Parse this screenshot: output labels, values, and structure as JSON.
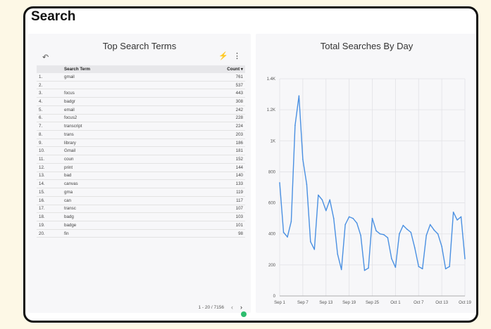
{
  "page": {
    "title": "Search"
  },
  "terms_panel": {
    "title": "Top Search Terms",
    "columns": {
      "term": "Search Term",
      "count": "Count"
    },
    "sort_indicator": "▾",
    "rows": [
      {
        "n": "1.",
        "term": "gmail",
        "count": "761"
      },
      {
        "n": "2.",
        "term": "",
        "count": "537"
      },
      {
        "n": "3.",
        "term": "focus",
        "count": "443"
      },
      {
        "n": "4.",
        "term": "badgr",
        "count": "308"
      },
      {
        "n": "5.",
        "term": "email",
        "count": "242"
      },
      {
        "n": "6.",
        "term": "focus2",
        "count": "228"
      },
      {
        "n": "7.",
        "term": "transcript",
        "count": "224"
      },
      {
        "n": "8.",
        "term": "trans",
        "count": "203"
      },
      {
        "n": "9.",
        "term": "library",
        "count": "186"
      },
      {
        "n": "10.",
        "term": "Gmail",
        "count": "181"
      },
      {
        "n": "11.",
        "term": "coun",
        "count": "152"
      },
      {
        "n": "12.",
        "term": "print",
        "count": "144"
      },
      {
        "n": "13.",
        "term": "bad",
        "count": "140"
      },
      {
        "n": "14.",
        "term": "canvas",
        "count": "133"
      },
      {
        "n": "15.",
        "term": "gma",
        "count": "119"
      },
      {
        "n": "16.",
        "term": "can",
        "count": "117"
      },
      {
        "n": "17.",
        "term": "transc",
        "count": "107"
      },
      {
        "n": "18.",
        "term": "badg",
        "count": "103"
      },
      {
        "n": "19.",
        "term": "badge",
        "count": "101"
      },
      {
        "n": "20.",
        "term": "fin",
        "count": "98"
      }
    ],
    "pagination": {
      "range": "1 - 20 / 7156",
      "prev": "‹",
      "next": "›"
    },
    "icons": {
      "reset": "undo-icon",
      "bolt": "bolt-icon",
      "menu": "kebab-icon"
    }
  },
  "chart_data": {
    "type": "line",
    "title": "Total Searches By Day",
    "x_tick_labels": [
      "Sep 1",
      "Sep 7",
      "Sep 13",
      "Sep 19",
      "Sep 25",
      "Oct 1",
      "Oct 7",
      "Oct 13",
      "Oct 19"
    ],
    "y_tick_labels": [
      "0",
      "200",
      "400",
      "600",
      "800",
      "1K",
      "1.2K",
      "1.4K"
    ],
    "ylim": [
      0,
      1400
    ],
    "x_days": [
      1,
      2,
      3,
      4,
      5,
      6,
      7,
      8,
      9,
      10,
      11,
      12,
      13,
      14,
      15,
      16,
      17,
      18,
      19,
      20,
      21,
      22,
      23,
      24,
      25,
      26,
      27,
      28,
      29,
      30,
      31,
      32,
      33,
      34,
      35,
      36,
      37,
      38,
      39,
      40,
      41,
      42,
      43,
      44,
      45,
      46,
      47,
      48,
      49
    ],
    "values": [
      730,
      410,
      380,
      480,
      1100,
      1290,
      880,
      720,
      350,
      300,
      650,
      620,
      550,
      620,
      500,
      270,
      170,
      460,
      510,
      500,
      470,
      390,
      165,
      180,
      500,
      420,
      400,
      395,
      375,
      240,
      185,
      400,
      455,
      430,
      410,
      310,
      190,
      175,
      390,
      460,
      425,
      400,
      320,
      175,
      190,
      540,
      490,
      510,
      240
    ],
    "line_color": "#4a90e2",
    "grid": true
  }
}
